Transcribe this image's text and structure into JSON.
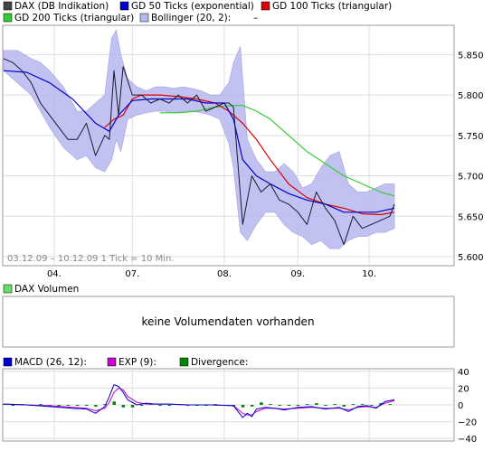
{
  "colors": {
    "price": "#1a1a2e",
    "ema50": "#0000cc",
    "tri100": "#dd0000",
    "tri200": "#33cc33",
    "bollinger_fill": "#b8b8f0",
    "bollinger_edge": "#9999dd",
    "macd": "#0000cc",
    "exp": "#cc00cc",
    "divergence": "#008800",
    "grid": "#dddddd",
    "frame": "#999999"
  },
  "legend": {
    "price": "DAX (DB Indikation)",
    "ema50": "GD 50 Ticks (exponential)",
    "tri100": "GD 100 Ticks (triangular)",
    "tri200": "GD 200 Ticks (triangular)",
    "bollinger": "Bollinger (20, 2):",
    "bollinger_value": "–"
  },
  "info_text": "03.12.09 – 10.12.09   1 Tick = 10 Min.",
  "volume": {
    "legend": "DAX Volumen",
    "message": "keine Volumendaten vorhanden"
  },
  "macd_legend": {
    "macd": "MACD (26, 12):",
    "exp": "EXP (9):",
    "divergence": "Divergence:"
  },
  "chart_data": [
    {
      "type": "line",
      "name": "price",
      "x_ticks": [
        "04.",
        "07.",
        "08.",
        "09.",
        "10."
      ],
      "y_ticks": [
        "5.850",
        "5.800",
        "5.750",
        "5.700",
        "5.650",
        "5.600"
      ],
      "ylim": [
        5590,
        5885
      ],
      "xlim": [
        0,
        170
      ],
      "grid": true,
      "series": [
        {
          "name": "DAX (DB Indikation)",
          "key": "price",
          "x": [
            0,
            4,
            8,
            12,
            16,
            20,
            24,
            28,
            32,
            36,
            40,
            44,
            46,
            48,
            50,
            52,
            56,
            60,
            64,
            68,
            72,
            76,
            80,
            84,
            88,
            92,
            96,
            98,
            100,
            104,
            108,
            112,
            116,
            120,
            124,
            128,
            132,
            136,
            140,
            144,
            148,
            152,
            156,
            160,
            164,
            168,
            170
          ],
          "y": [
            5845,
            5840,
            5830,
            5815,
            5790,
            5775,
            5760,
            5745,
            5745,
            5765,
            5725,
            5750,
            5745,
            5830,
            5775,
            5835,
            5800,
            5800,
            5790,
            5795,
            5790,
            5800,
            5790,
            5800,
            5780,
            5785,
            5790,
            5790,
            5785,
            5640,
            5700,
            5680,
            5690,
            5670,
            5665,
            5655,
            5640,
            5680,
            5660,
            5645,
            5615,
            5650,
            5635,
            5640,
            5645,
            5650,
            5665
          ]
        },
        {
          "name": "GD 50 Ticks (exponential)",
          "key": "ema50",
          "x": [
            0,
            10,
            20,
            30,
            40,
            46,
            50,
            56,
            64,
            72,
            80,
            88,
            96,
            100,
            104,
            110,
            116,
            124,
            132,
            140,
            148,
            156,
            162,
            170
          ],
          "y": [
            5830,
            5828,
            5815,
            5795,
            5765,
            5755,
            5775,
            5793,
            5795,
            5795,
            5795,
            5790,
            5790,
            5770,
            5720,
            5700,
            5690,
            5678,
            5670,
            5665,
            5655,
            5655,
            5655,
            5660
          ]
        },
        {
          "name": "GD 100 Ticks (triangular)",
          "key": "tri100",
          "x": [
            44,
            48,
            52,
            56,
            60,
            64,
            68,
            76,
            84,
            92,
            98,
            104,
            110,
            116,
            124,
            132,
            140,
            148,
            156,
            164,
            170
          ],
          "y": [
            5760,
            5770,
            5775,
            5795,
            5800,
            5800,
            5800,
            5798,
            5795,
            5790,
            5780,
            5765,
            5745,
            5720,
            5690,
            5673,
            5665,
            5660,
            5653,
            5652,
            5655
          ]
        },
        {
          "name": "GD 200 Ticks (triangular)",
          "key": "tri200",
          "x": [
            68,
            76,
            84,
            92,
            100,
            104,
            110,
            116,
            124,
            132,
            140,
            148,
            156,
            164,
            170
          ],
          "y": [
            5778,
            5778,
            5780,
            5785,
            5787,
            5787,
            5780,
            5770,
            5750,
            5730,
            5715,
            5700,
            5690,
            5680,
            5675
          ]
        }
      ],
      "bollinger": {
        "name": "Bollinger (20, 2)",
        "x": [
          0,
          6,
          12,
          16,
          20,
          26,
          32,
          36,
          40,
          44,
          47,
          49,
          51,
          54,
          58,
          62,
          66,
          70,
          74,
          78,
          82,
          86,
          90,
          94,
          98,
          100,
          103,
          106,
          110,
          114,
          118,
          122,
          126,
          130,
          134,
          138,
          142,
          146,
          150,
          154,
          158,
          162,
          166,
          170
        ],
        "upper": [
          5855,
          5855,
          5845,
          5840,
          5830,
          5810,
          5780,
          5780,
          5790,
          5800,
          5870,
          5880,
          5850,
          5820,
          5810,
          5805,
          5810,
          5810,
          5808,
          5810,
          5808,
          5805,
          5800,
          5800,
          5815,
          5840,
          5860,
          5745,
          5720,
          5705,
          5705,
          5715,
          5705,
          5685,
          5690,
          5710,
          5725,
          5730,
          5690,
          5680,
          5680,
          5685,
          5690,
          5690
        ],
        "lower": [
          5830,
          5815,
          5800,
          5780,
          5760,
          5735,
          5720,
          5725,
          5710,
          5705,
          5720,
          5745,
          5730,
          5770,
          5775,
          5778,
          5780,
          5780,
          5778,
          5780,
          5780,
          5778,
          5775,
          5770,
          5740,
          5710,
          5630,
          5620,
          5640,
          5655,
          5655,
          5640,
          5630,
          5625,
          5615,
          5620,
          5610,
          5610,
          5620,
          5625,
          5625,
          5630,
          5630,
          5635
        ]
      }
    },
    {
      "type": "line",
      "name": "macd",
      "y_ticks": [
        "40",
        "20",
        "0",
        "−20",
        "−40"
      ],
      "ylim": [
        -42,
        42
      ],
      "xlim": [
        0,
        170
      ],
      "grid": true,
      "series": [
        {
          "name": "MACD (26, 12)",
          "key": "macd",
          "x": [
            0,
            10,
            20,
            30,
            36,
            40,
            44,
            46,
            48,
            50,
            52,
            54,
            58,
            62,
            66,
            72,
            80,
            90,
            100,
            104,
            106,
            108,
            110,
            114,
            118,
            122,
            128,
            134,
            140,
            146,
            150,
            154,
            158,
            162,
            166,
            170
          ],
          "y": [
            1,
            0,
            -2,
            -4,
            -5,
            -10,
            -2,
            10,
            24,
            22,
            15,
            6,
            0,
            2,
            1,
            1,
            0,
            0,
            -1,
            -15,
            -10,
            -14,
            -5,
            -3,
            -4,
            -6,
            -3,
            -2,
            -5,
            -3,
            -8,
            -2,
            -1,
            -4,
            4,
            6
          ]
        },
        {
          "name": "EXP (9)",
          "key": "exp",
          "x": [
            0,
            10,
            20,
            30,
            36,
            40,
            44,
            46,
            48,
            50,
            52,
            54,
            58,
            62,
            66,
            72,
            80,
            90,
            100,
            104,
            106,
            108,
            110,
            114,
            118,
            122,
            128,
            134,
            140,
            146,
            150,
            154,
            158,
            162,
            166,
            170
          ],
          "y": [
            1,
            0,
            -1,
            -3,
            -4,
            -7,
            -4,
            3,
            15,
            20,
            18,
            10,
            3,
            1,
            1,
            1,
            0,
            0,
            -1,
            -10,
            -12,
            -12,
            -8,
            -4,
            -4,
            -5,
            -4,
            -3,
            -4,
            -4,
            -6,
            -3,
            -2,
            -3,
            2,
            5
          ]
        }
      ],
      "divergence": {
        "name": "Divergence",
        "x": [
          0,
          4,
          8,
          12,
          16,
          20,
          24,
          28,
          32,
          36,
          40,
          44,
          48,
          52,
          56,
          60,
          64,
          68,
          72,
          76,
          80,
          84,
          88,
          92,
          96,
          100,
          104,
          108,
          112,
          116,
          120,
          124,
          128,
          132,
          136,
          140,
          144,
          148,
          152,
          156,
          160,
          164,
          168
        ],
        "y": [
          1,
          0,
          1,
          -1,
          1,
          -1,
          0,
          -1,
          -1,
          -1,
          -2,
          1,
          4,
          -3,
          -3,
          0,
          1,
          0,
          0,
          1,
          0,
          0,
          0,
          1,
          0,
          -2,
          -3,
          -2,
          3,
          1,
          -1,
          0,
          -1,
          1,
          2,
          -1,
          1,
          -2,
          1,
          1,
          -1,
          2,
          1
        ]
      }
    }
  ]
}
